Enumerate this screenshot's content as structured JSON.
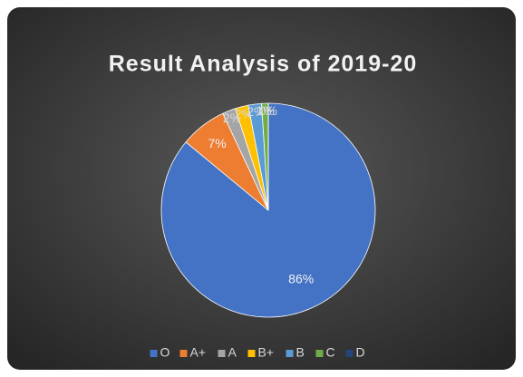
{
  "chart_data": {
    "type": "pie",
    "title": "Result Analysis of 2019-20",
    "categories": [
      "O",
      "A+",
      "A",
      "B+",
      "B",
      "C",
      "D"
    ],
    "values": [
      86,
      7,
      2,
      2,
      2,
      1,
      0
    ],
    "value_labels": [
      "86%",
      "7%",
      "2%",
      "2%",
      "2%",
      "1%",
      "0%"
    ],
    "colors": [
      "#4472c4",
      "#ed7d31",
      "#a5a5a5",
      "#ffc000",
      "#5b9bd5",
      "#70ad47",
      "#264478"
    ],
    "legend": "bottom"
  }
}
